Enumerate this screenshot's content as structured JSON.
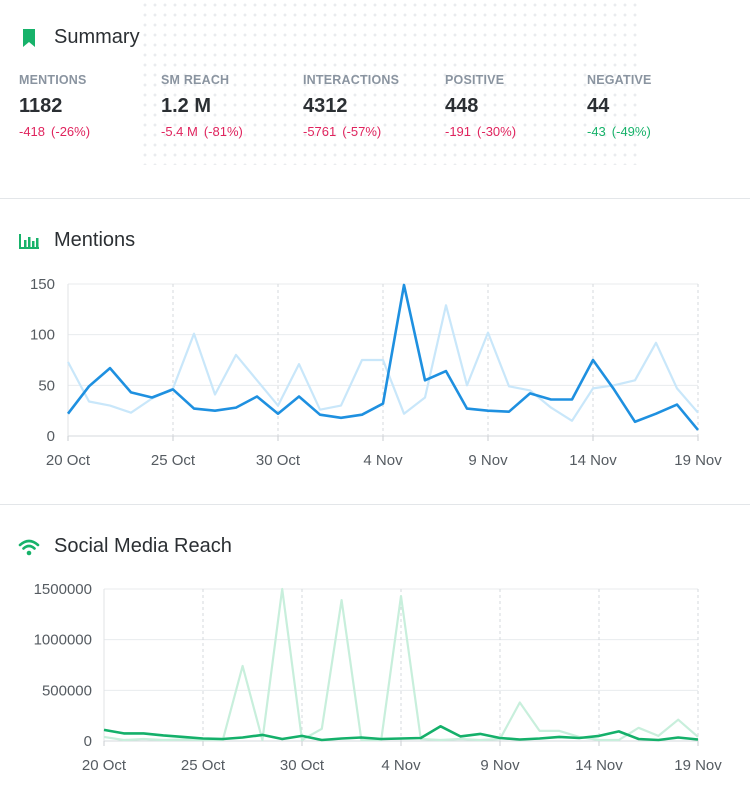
{
  "summary": {
    "title": "Summary",
    "metrics": [
      {
        "label": "MENTIONS",
        "value": "1182",
        "change": "-418",
        "pct": "(-26%)",
        "trend": "neg"
      },
      {
        "label": "SM REACH",
        "value": "1.2 M",
        "change": "-5.4 M",
        "pct": "(-81%)",
        "trend": "neg"
      },
      {
        "label": "INTERACTIONS",
        "value": "4312",
        "change": "-5761",
        "pct": "(-57%)",
        "trend": "neg"
      },
      {
        "label": "POSITIVE",
        "value": "448",
        "change": "-191",
        "pct": "(-30%)",
        "trend": "neg"
      },
      {
        "label": "NEGATIVE",
        "value": "44",
        "change": "-43",
        "pct": "(-49%)",
        "trend": "pos"
      }
    ]
  },
  "mentions": {
    "title": "Mentions"
  },
  "reach": {
    "title": "Social Media Reach"
  },
  "colors": {
    "accent_green": "#17b26a",
    "negative": "#e0245e",
    "positive": "#17b26a"
  },
  "chart_data": [
    {
      "type": "line",
      "title": "Mentions",
      "x_tick_labels": [
        "20 Oct",
        "25 Oct",
        "30 Oct",
        "4 Nov",
        "9 Nov",
        "14 Nov",
        "19 Nov"
      ],
      "x_start": "20 Oct",
      "x_end": "19 Nov",
      "ylim": [
        0,
        150
      ],
      "y_ticks": [
        0,
        50,
        100,
        150
      ],
      "grid": true,
      "series": [
        {
          "role": "current",
          "color": "#1e90e0",
          "values": [
            22,
            49,
            67,
            43,
            38,
            46,
            27,
            25,
            28,
            39,
            22,
            39,
            21,
            18,
            21,
            32,
            149,
            55,
            64,
            27,
            25,
            24,
            42,
            36,
            36,
            75,
            46,
            14,
            22,
            31,
            6
          ]
        },
        {
          "role": "previous",
          "color": "#c9e7fa",
          "values": [
            73,
            34,
            30,
            23,
            37,
            47,
            101,
            41,
            80,
            55,
            30,
            71,
            26,
            30,
            75,
            75,
            22,
            38,
            129,
            50,
            102,
            49,
            45,
            28,
            15,
            47,
            50,
            55,
            92,
            47,
            23
          ]
        }
      ]
    },
    {
      "type": "line",
      "title": "Social Media Reach",
      "x_tick_labels": [
        "20 Oct",
        "25 Oct",
        "30 Oct",
        "4 Nov",
        "9 Nov",
        "14 Nov",
        "19 Nov"
      ],
      "x_start": "20 Oct",
      "x_end": "19 Nov",
      "ylim": [
        0,
        1500000
      ],
      "y_ticks": [
        0,
        500000,
        1000000,
        1500000
      ],
      "grid": true,
      "series": [
        {
          "role": "current",
          "color": "#14b06a",
          "values": [
            110000,
            75000,
            75000,
            55000,
            40000,
            25000,
            20000,
            35000,
            60000,
            20000,
            50000,
            10000,
            25000,
            35000,
            20000,
            25000,
            30000,
            145000,
            45000,
            70000,
            30000,
            15000,
            25000,
            40000,
            30000,
            50000,
            95000,
            20000,
            10000,
            35000,
            15000
          ]
        },
        {
          "role": "previous",
          "color": "#c8efdc",
          "values": [
            40000,
            10000,
            20000,
            10000,
            15000,
            10000,
            10000,
            740000,
            10000,
            1500000,
            10000,
            120000,
            1390000,
            10000,
            10000,
            1430000,
            20000,
            10000,
            20000,
            10000,
            20000,
            380000,
            100000,
            100000,
            40000,
            10000,
            10000,
            130000,
            50000,
            210000,
            40000
          ]
        }
      ]
    }
  ]
}
